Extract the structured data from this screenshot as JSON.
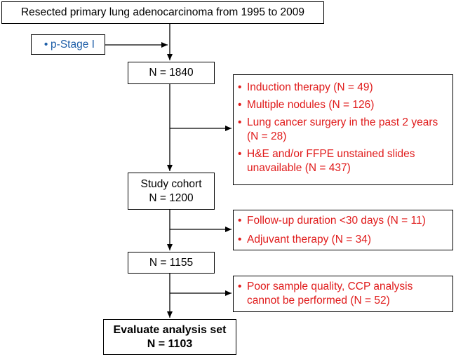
{
  "title_box": "Resected primary lung adenocarcinoma from 1995 to 2009",
  "criterion": {
    "bullet": "•",
    "text": "p-Stage I"
  },
  "n1": "N = 1840",
  "excl1": {
    "bullet": "•",
    "items": [
      "Induction therapy (N = 49)",
      "Multiple nodules (N = 126)",
      "Lung cancer surgery in the past 2 years (N = 28)",
      "H&E and/or FFPE unstained slides unavailable (N = 437)"
    ]
  },
  "cohort": {
    "line1": "Study cohort",
    "line2": "N = 1200"
  },
  "excl2": {
    "bullet": "•",
    "items": [
      "Follow-up duration <30 days  (N = 11)",
      "Adjuvant therapy (N = 34)"
    ]
  },
  "n3": "N = 1155",
  "excl3": {
    "bullet": "•",
    "items": [
      "Poor sample quality, CCP analysis cannot be performed (N = 52)"
    ]
  },
  "final": {
    "line1": "Evaluate analysis set",
    "line2": "N = 1103"
  },
  "colors": {
    "red": "#e01b1b",
    "blue": "#1f5fa8"
  }
}
